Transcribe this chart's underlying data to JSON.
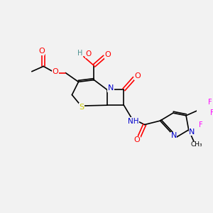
{
  "background_color": "#f2f2f2",
  "figsize": [
    3.0,
    3.0
  ],
  "dpi": 100,
  "colors": {
    "C": "#000000",
    "N": "#0000cc",
    "O": "#ff0000",
    "S": "#cccc00",
    "F": "#ff00ff",
    "H": "#4a9090"
  },
  "lw": 1.2,
  "fs": 7.0
}
